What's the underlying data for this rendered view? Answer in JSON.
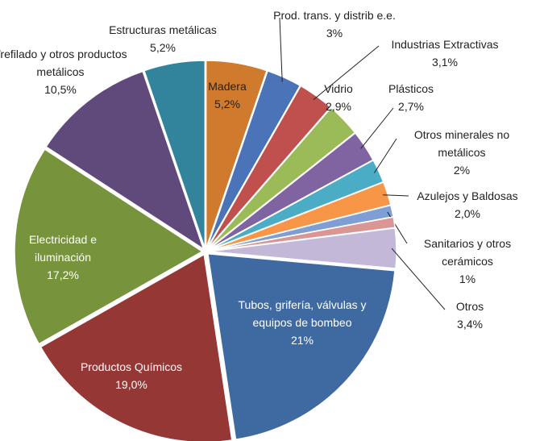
{
  "chart_data": {
    "type": "pie",
    "categories": [
      "Madera",
      "Prod. trans. y distrib e.e.",
      "Industrias Extractivas",
      "Vidrio",
      "Plásticos",
      "Otros minerales no metálicos",
      "Azulejos y Baldosas",
      "Sanitarios y otros cerámicos",
      null,
      "Otros",
      "Tubos, grifería, válvulas y equipos de bombeo",
      "Productos Químicos",
      "Electricidad e iluminación",
      "Trefilado y otros productos metálicos",
      "Estructuras metálicas"
    ],
    "values": [
      5.2,
      3,
      3.1,
      2.9,
      2.7,
      2,
      2.0,
      1,
      0.9,
      3.4,
      21,
      19.0,
      17.2,
      10.5,
      5.2
    ],
    "value_labels": [
      "5,2%",
      "3%",
      "3,1%",
      "2,9%",
      "2,7%",
      "2%",
      "2,0%",
      "1%",
      null,
      "3,4%",
      "21%",
      "19,0%",
      "17,2%",
      "10,5%",
      "5,2%"
    ],
    "colors": [
      "#d07a2e",
      "#4a73b8",
      "#c0504d",
      "#9bbb59",
      "#8064a2",
      "#4bacc6",
      "#f79646",
      "#7f9fd4",
      "#d99694",
      "#c3b8d8",
      "#3f6aa1",
      "#953735",
      "#77933c",
      "#604a7b",
      "#31849b"
    ]
  }
}
